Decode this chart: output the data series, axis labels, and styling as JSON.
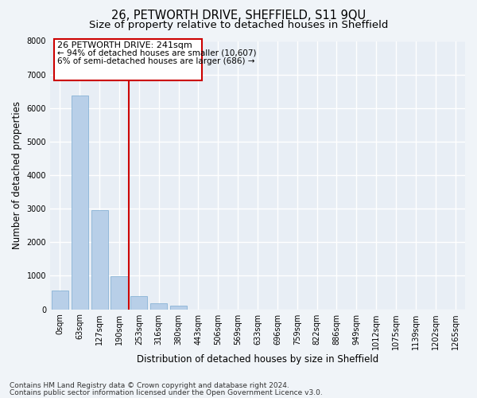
{
  "title": "26, PETWORTH DRIVE, SHEFFIELD, S11 9QU",
  "subtitle": "Size of property relative to detached houses in Sheffield",
  "xlabel": "Distribution of detached houses by size in Sheffield",
  "ylabel": "Number of detached properties",
  "categories": [
    "0sqm",
    "63sqm",
    "127sqm",
    "190sqm",
    "253sqm",
    "316sqm",
    "380sqm",
    "443sqm",
    "506sqm",
    "569sqm",
    "633sqm",
    "696sqm",
    "759sqm",
    "822sqm",
    "886sqm",
    "949sqm",
    "1012sqm",
    "1075sqm",
    "1139sqm",
    "1202sqm",
    "1265sqm"
  ],
  "bar_values": [
    550,
    6380,
    2950,
    990,
    390,
    190,
    100,
    0,
    0,
    0,
    0,
    0,
    0,
    0,
    0,
    0,
    0,
    0,
    0,
    0,
    0
  ],
  "bar_color": "#b8cfe8",
  "bar_edge_color": "#7aaad0",
  "bg_color": "#e8eef5",
  "grid_color": "#ffffff",
  "vline_color": "#cc0000",
  "vline_x_index": 3,
  "annotation_box_color": "#cc0000",
  "annotation_line1": "26 PETWORTH DRIVE: 241sqm",
  "annotation_line2": "← 94% of detached houses are smaller (10,607)",
  "annotation_line3": "6% of semi-detached houses are larger (686) →",
  "ylim": [
    0,
    8000
  ],
  "yticks": [
    0,
    1000,
    2000,
    3000,
    4000,
    5000,
    6000,
    7000,
    8000
  ],
  "footer_line1": "Contains HM Land Registry data © Crown copyright and database right 2024.",
  "footer_line2": "Contains public sector information licensed under the Open Government Licence v3.0.",
  "title_fontsize": 10.5,
  "subtitle_fontsize": 9.5,
  "axis_label_fontsize": 8.5,
  "tick_fontsize": 7,
  "annotation_fontsize": 8,
  "footer_fontsize": 6.5
}
